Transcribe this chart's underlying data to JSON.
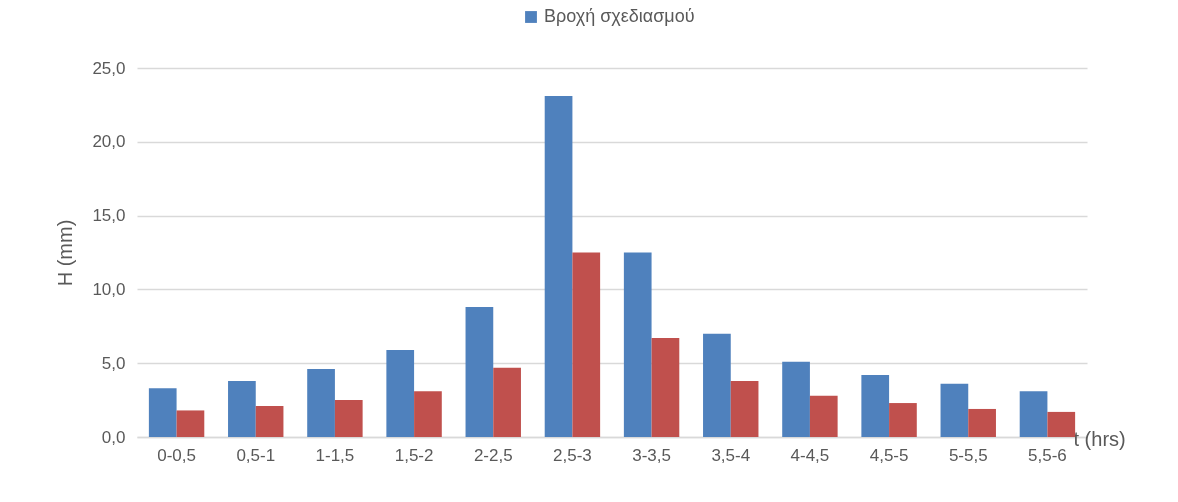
{
  "chart_data": {
    "type": "bar",
    "ylabel": "H (mm)",
    "xlabel": "t (hrs)",
    "categories": [
      "0-0,5",
      "0,5-1",
      "1-1,5",
      "1,5-2",
      "2-2,5",
      "2,5-3",
      "3-3,5",
      "3,5-4",
      "4-4,5",
      "4,5-5",
      "5-5,5",
      "5,5-6"
    ],
    "series": [
      {
        "name": "Βροχή σχεδιασμού",
        "color": "#4f81bd",
        "values": [
          3.3,
          3.8,
          4.6,
          5.9,
          8.8,
          23.1,
          12.5,
          7.0,
          5.1,
          4.2,
          3.6,
          3.1
        ]
      },
      {
        "color": "#c0504d",
        "values": [
          1.8,
          2.1,
          2.5,
          3.1,
          4.7,
          12.5,
          6.7,
          3.8,
          2.8,
          2.3,
          1.9,
          1.7
        ]
      }
    ],
    "ylim": [
      0,
      25
    ],
    "yticks": [
      {
        "value": 0,
        "label": "0,0"
      },
      {
        "value": 5,
        "label": "5,0"
      },
      {
        "value": 10,
        "label": "10,0"
      },
      {
        "value": 15,
        "label": "15,0"
      },
      {
        "value": 20,
        "label": "20,0"
      },
      {
        "value": 25,
        "label": "25,0"
      }
    ],
    "grid": "y",
    "legend": "top"
  }
}
